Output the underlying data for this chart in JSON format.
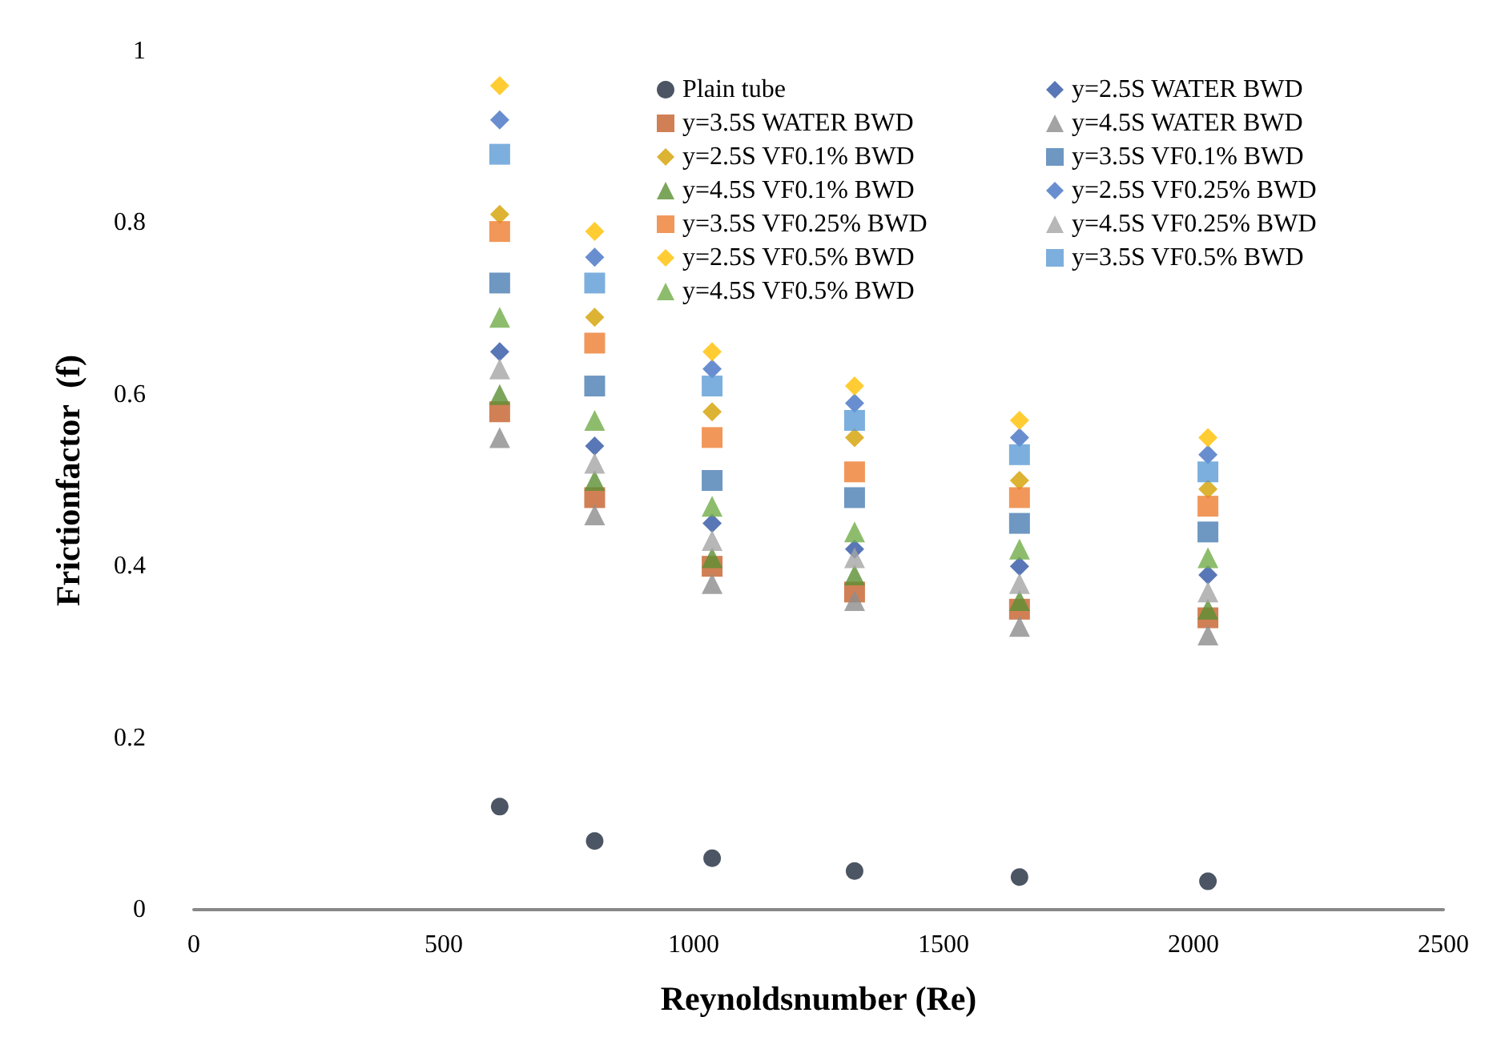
{
  "chart_data": {
    "type": "scatter",
    "xlabel": "Reynoldsnumber (Re)",
    "ylabel": "Frictionfactor  (f)",
    "x": [
      612,
      802,
      1037,
      1322,
      1652,
      2029
    ],
    "xlim": [
      0,
      2500
    ],
    "xticks": [
      0,
      500,
      1000,
      1500,
      2000,
      2500
    ],
    "ylim": [
      0,
      1
    ],
    "yticks": [
      0,
      0.2,
      0.4,
      0.6,
      0.8,
      1
    ],
    "grid": false,
    "legend": "top right",
    "series": [
      {
        "name": "Plain tube",
        "color": "#1f2a3c",
        "marker": "circle",
        "values": [
          0.12,
          0.08,
          0.06,
          0.045,
          0.038,
          0.033
        ]
      },
      {
        "name": "y=2.5S WATER BWD",
        "color": "#2f55a4",
        "marker": "diamond",
        "values": [
          0.65,
          0.54,
          0.45,
          0.42,
          0.4,
          0.39
        ]
      },
      {
        "name": "y=3.5S WATER BWD",
        "color": "#c5602a",
        "marker": "square",
        "values": [
          0.58,
          0.48,
          0.4,
          0.37,
          0.35,
          0.34
        ]
      },
      {
        "name": "y=4.5S WATER BWD",
        "color": "#8c8c8c",
        "marker": "triangle",
        "values": [
          0.55,
          0.46,
          0.38,
          0.36,
          0.33,
          0.32
        ]
      },
      {
        "name": "y=2.5S VF0.1% BWD",
        "color": "#d4a000",
        "marker": "diamond",
        "values": [
          0.81,
          0.69,
          0.58,
          0.55,
          0.5,
          0.49
        ]
      },
      {
        "name": "y=3.5S VF0.1% BWD",
        "color": "#4a7db3",
        "marker": "square",
        "values": [
          0.73,
          0.61,
          0.5,
          0.48,
          0.45,
          0.44
        ]
      },
      {
        "name": "y=4.5S VF0.1% BWD",
        "color": "#5b8f33",
        "marker": "triangle",
        "values": [
          0.6,
          0.5,
          0.41,
          0.39,
          0.36,
          0.35
        ]
      },
      {
        "name": "y=2.5S VF0.25% BWD",
        "color": "#4472c4",
        "marker": "diamond",
        "values": [
          0.92,
          0.76,
          0.63,
          0.59,
          0.55,
          0.53
        ]
      },
      {
        "name": "y=3.5S VF0.25% BWD",
        "color": "#ed7d31",
        "marker": "square",
        "values": [
          0.79,
          0.66,
          0.55,
          0.51,
          0.48,
          0.47
        ]
      },
      {
        "name": "y=4.5S VF0.25% BWD",
        "color": "#a5a5a5",
        "marker": "triangle",
        "values": [
          0.63,
          0.52,
          0.43,
          0.41,
          0.38,
          0.37
        ]
      },
      {
        "name": "y=2.5S VF0.5% BWD",
        "color": "#ffc000",
        "marker": "diamond",
        "values": [
          0.96,
          0.79,
          0.65,
          0.61,
          0.57,
          0.55
        ]
      },
      {
        "name": "y=3.5S VF0.5% BWD",
        "color": "#5b9bd5",
        "marker": "square",
        "values": [
          0.88,
          0.73,
          0.61,
          0.57,
          0.53,
          0.51
        ]
      },
      {
        "name": "y=4.5S VF0.5% BWD",
        "color": "#70ad47",
        "marker": "triangle",
        "values": [
          0.69,
          0.57,
          0.47,
          0.44,
          0.42,
          0.41
        ]
      }
    ]
  }
}
